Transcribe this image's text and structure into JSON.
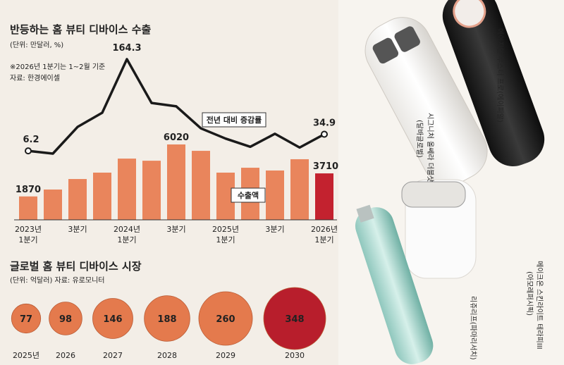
{
  "chart_data": [
    {
      "type": "bar-line",
      "title": "반등하는 홈 뷰티 디바이스 수출",
      "subtitle": "(단위: 만달러, %)",
      "notes": [
        "※2026년 1분기는 1~2월 기준",
        "자료: 한경에이셀"
      ],
      "categories": [
        [
          "2023년",
          "1분기"
        ],
        null,
        [
          "3분기"
        ],
        null,
        [
          "2024년",
          "1분기"
        ],
        null,
        [
          "3분기"
        ],
        null,
        [
          "2025년",
          "1분기"
        ],
        null,
        [
          "3분기"
        ],
        null,
        [
          "2026년",
          "1분기"
        ]
      ],
      "series": [
        {
          "name": "수출액",
          "type": "bar",
          "color": "#e9855c",
          "colors": [
            "#e9855c",
            "#e9855c",
            "#e9855c",
            "#e9855c",
            "#e9855c",
            "#e9855c",
            "#e9855c",
            "#e9855c",
            "#e9855c",
            "#e9855c",
            "#e9855c",
            "#e9855c",
            "#c3222f"
          ],
          "values": [
            1870,
            2420,
            3260,
            3770,
            4890,
            4720,
            6020,
            5510,
            3770,
            4160,
            3940,
            4840,
            3710
          ],
          "value_labels": [
            "1870",
            null,
            null,
            null,
            null,
            null,
            "6020",
            null,
            null,
            null,
            null,
            null,
            "3710"
          ]
        },
        {
          "name": "전년 대비 증감률",
          "type": "line",
          "color": "#1a1a1a",
          "values": [
            6.2,
            1.5,
            47.5,
            72,
            164.3,
            88.8,
            83,
            45,
            27.4,
            13.3,
            35.7,
            12,
            34.9
          ],
          "value_labels": [
            "6.2",
            null,
            null,
            null,
            "164.3",
            null,
            null,
            null,
            null,
            null,
            null,
            null,
            "34.9"
          ]
        }
      ]
    },
    {
      "type": "bubble",
      "title": "글로벌 홈 뷰티 디바이스 시장",
      "subtitle": "(단위: 억달러)  자료: 유로모니터",
      "categories": [
        "2025년",
        "2026",
        "2027",
        "2028",
        "2029",
        "2030"
      ],
      "values": [
        77,
        98,
        146,
        188,
        260,
        348
      ],
      "colors": [
        "#e47a4d",
        "#e47a4d",
        "#e47a4d",
        "#e47a4d",
        "#e47a4d",
        "#b81e2c"
      ]
    }
  ],
  "products": [
    "에이지알 부스터 프로(에이피알)",
    "시그니처 올쎄라 더블샷",
    "(달바글로벌)",
    "메이크온 스킨라이트 테라피III",
    "(아모레퍼시픽)",
    "리쥬리프(파마리서치)"
  ]
}
